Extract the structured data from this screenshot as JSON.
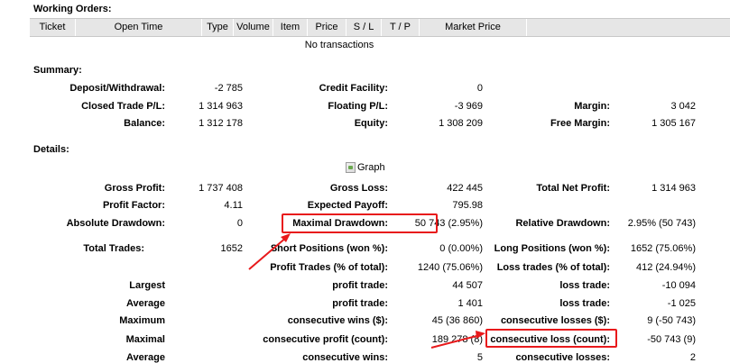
{
  "working_orders": {
    "title": "Working Orders:",
    "columns": [
      "Ticket",
      "Open Time",
      "Type",
      "Volume",
      "Item",
      "Price",
      "S / L",
      "T / P",
      "Market Price"
    ],
    "empty_message": "No transactions"
  },
  "summary": {
    "title": "Summary:",
    "deposit_label": "Deposit/Withdrawal:",
    "deposit_value": "-2 785",
    "credit_label": "Credit Facility:",
    "credit_value": "0",
    "closed_pl_label": "Closed Trade P/L:",
    "closed_pl_value": "1 314 963",
    "floating_pl_label": "Floating P/L:",
    "floating_pl_value": "-3 969",
    "margin_label": "Margin:",
    "margin_value": "3 042",
    "balance_label": "Balance:",
    "balance_value": "1 312 178",
    "equity_label": "Equity:",
    "equity_value": "1 308 209",
    "free_margin_label": "Free Margin:",
    "free_margin_value": "1 305 167"
  },
  "details": {
    "title": "Details:",
    "graph_alt": "Graph",
    "gross_profit_label": "Gross Profit:",
    "gross_profit_value": "1 737 408",
    "gross_loss_label": "Gross Loss:",
    "gross_loss_value": "422 445",
    "total_net_label": "Total Net Profit:",
    "total_net_value": "1 314 963",
    "profit_factor_label": "Profit Factor:",
    "profit_factor_value": "4.11",
    "expected_payoff_label": "Expected Payoff:",
    "expected_payoff_value": "795.98",
    "abs_dd_label": "Absolute Drawdown:",
    "abs_dd_value": "0",
    "max_dd_label": "Maximal Drawdown:",
    "max_dd_value": "50 743 (2.95%)",
    "rel_dd_label": "Relative Drawdown:",
    "rel_dd_value": "2.95% (50 743)",
    "total_trades_label": "Total Trades:",
    "total_trades_value": "1652",
    "short_label": "Short Positions (won %):",
    "short_value": "0 (0.00%)",
    "long_label": "Long Positions (won %):",
    "long_value": "1652 (75.06%)",
    "profit_trades_label": "Profit Trades (% of total):",
    "profit_trades_value": "1240 (75.06%)",
    "loss_trades_label": "Loss trades (% of total):",
    "loss_trades_value": "412 (24.94%)",
    "largest_label": "Largest",
    "largest_profit_label": "profit trade:",
    "largest_profit_value": "44 507",
    "largest_loss_label": "loss trade:",
    "largest_loss_value": "-10 094",
    "average_label": "Average",
    "avg_profit_label": "profit trade:",
    "avg_profit_value": "1 401",
    "avg_loss_label": "loss trade:",
    "avg_loss_value": "-1 025",
    "maximum_label": "Maximum",
    "cons_wins_label": "consecutive wins ($):",
    "cons_wins_value": "45 (36 860)",
    "cons_losses_label": "consecutive losses ($):",
    "cons_losses_value": "9 (-50 743)",
    "maximal_label": "Maximal",
    "cons_profit_label": "consecutive profit (count):",
    "cons_profit_value": "189 278 (8)",
    "cons_loss_label": "consecutive loss (count):",
    "cons_loss_value": "-50 743 (9)",
    "average2_label": "Average",
    "avg_cons_wins_label": "consecutive wins:",
    "avg_cons_wins_value": "5",
    "avg_cons_losses_label": "consecutive losses:",
    "avg_cons_losses_value": "2"
  },
  "annotation_color": "#e8191b"
}
